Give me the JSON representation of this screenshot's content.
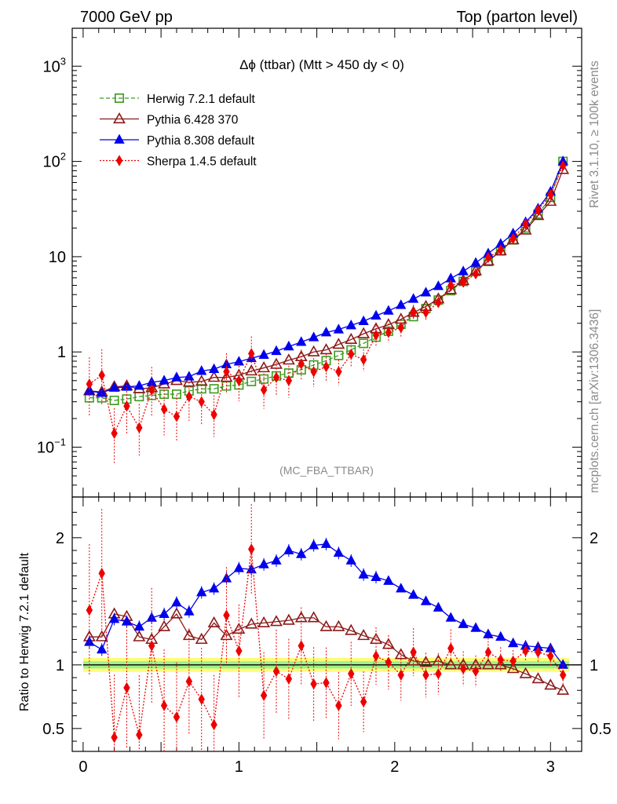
{
  "header": {
    "left": "7000 GeV pp",
    "right": "Top (parton level)"
  },
  "side_labels": {
    "rivet": "Rivet 3.1.10, ≥ 100k events",
    "mcplots": "mcplots.cern.ch [arXiv:1306.3436]"
  },
  "chart_data": {
    "type": "line",
    "title": "Δϕ (ttbar) (Mtt > 450 dy < 0)",
    "watermark": "(MC_FBA_TTBAR)",
    "log_y": true,
    "xlim": [
      -0.07,
      3.2
    ],
    "ylim": [
      0.03,
      2500
    ],
    "x_ticks": [
      "0",
      "1",
      "2",
      "3"
    ],
    "y_ticks": [
      {
        "v": 0.1,
        "base": "10",
        "exp": "−1"
      },
      {
        "v": 1,
        "base": "1",
        "exp": ""
      },
      {
        "v": 10,
        "base": "10",
        "exp": ""
      },
      {
        "v": 100,
        "base": "10",
        "exp": "2"
      },
      {
        "v": 1000,
        "base": "10",
        "exp": "3"
      }
    ],
    "x": [
      0.04,
      0.12,
      0.2,
      0.28,
      0.36,
      0.44,
      0.52,
      0.6,
      0.68,
      0.76,
      0.84,
      0.92,
      1.0,
      1.08,
      1.16,
      1.24,
      1.32,
      1.4,
      1.48,
      1.56,
      1.64,
      1.72,
      1.8,
      1.88,
      1.96,
      2.04,
      2.12,
      2.2,
      2.28,
      2.36,
      2.44,
      2.52,
      2.6,
      2.68,
      2.76,
      2.84,
      2.92,
      3.0,
      3.08
    ],
    "series": [
      {
        "name": "Herwig 7.2.1 default",
        "color": "#3e9a1e",
        "marker": "open-square",
        "line": "dashed",
        "values": [
          0.33,
          0.33,
          0.31,
          0.32,
          0.34,
          0.35,
          0.36,
          0.36,
          0.39,
          0.41,
          0.41,
          0.44,
          0.45,
          0.49,
          0.52,
          0.56,
          0.6,
          0.65,
          0.73,
          0.81,
          0.92,
          1.05,
          1.23,
          1.43,
          1.65,
          1.95,
          2.35,
          2.85,
          3.5,
          4.4,
          5.5,
          7.0,
          8.9,
          11.5,
          15.0,
          20.0,
          28.0,
          42.0,
          100.0
        ]
      },
      {
        "name": "Pythia 6.428 370",
        "color": "#8b1a1a",
        "marker": "open-triangle",
        "line": "solid",
        "values": [
          0.39,
          0.38,
          0.43,
          0.44,
          0.41,
          0.42,
          0.46,
          0.5,
          0.48,
          0.49,
          0.54,
          0.54,
          0.57,
          0.63,
          0.68,
          0.74,
          0.82,
          0.89,
          1.0,
          1.05,
          1.2,
          1.35,
          1.55,
          1.75,
          1.93,
          2.2,
          2.6,
          3.0,
          3.6,
          4.5,
          5.6,
          7.1,
          9.0,
          11.5,
          15.0,
          19.0,
          27.0,
          38.0,
          82.0
        ]
      },
      {
        "name": "Pythia 8.308 default",
        "color": "#0000ee",
        "marker": "filled-triangle",
        "line": "solid",
        "values": [
          0.39,
          0.37,
          0.42,
          0.43,
          0.44,
          0.48,
          0.5,
          0.54,
          0.55,
          0.63,
          0.66,
          0.74,
          0.79,
          0.86,
          0.93,
          1.02,
          1.14,
          1.27,
          1.42,
          1.6,
          1.72,
          1.9,
          2.1,
          2.4,
          2.7,
          3.1,
          3.6,
          4.2,
          4.9,
          5.9,
          7.0,
          8.6,
          10.8,
          13.6,
          17.5,
          23.0,
          32.0,
          48.0,
          100.0
        ]
      },
      {
        "name": "Sherpa 1.4.5 default",
        "color": "#ee0000",
        "marker": "filled-diamond",
        "line": "dotted",
        "values": [
          0.46,
          0.57,
          0.14,
          0.27,
          0.16,
          0.4,
          0.25,
          0.21,
          0.34,
          0.3,
          0.22,
          0.62,
          0.5,
          0.96,
          0.4,
          0.54,
          0.5,
          0.75,
          0.62,
          0.7,
          0.62,
          0.95,
          0.83,
          1.5,
          1.6,
          1.8,
          2.6,
          2.6,
          3.3,
          5.0,
          5.4,
          6.6,
          9.8,
          11.8,
          15.5,
          22.0,
          31.0,
          45.0,
          90.0
        ]
      }
    ],
    "ratio": {
      "ylabel": "Ratio to Herwig 7.2.1 default",
      "ylim": [
        0.32,
        2.32
      ],
      "y_ticks": [
        0.5,
        1,
        2
      ],
      "band_outer": 0.055,
      "band_inner": 0.028,
      "series": [
        {
          "name": "Pythia 6.428 370",
          "values": [
            1.22,
            1.22,
            1.4,
            1.38,
            1.22,
            1.2,
            1.3,
            1.4,
            1.23,
            1.2,
            1.33,
            1.23,
            1.28,
            1.32,
            1.33,
            1.34,
            1.35,
            1.37,
            1.37,
            1.3,
            1.3,
            1.27,
            1.23,
            1.2,
            1.16,
            1.08,
            1.03,
            1.02,
            1.03,
            1.0,
            1.0,
            1.0,
            1.0,
            1.0,
            0.97,
            0.93,
            0.89,
            0.84,
            0.8
          ]
        },
        {
          "name": "Pythia 8.308 default",
          "values": [
            1.18,
            1.12,
            1.36,
            1.34,
            1.3,
            1.37,
            1.4,
            1.49,
            1.42,
            1.57,
            1.6,
            1.68,
            1.76,
            1.75,
            1.79,
            1.82,
            1.9,
            1.87,
            1.94,
            1.95,
            1.88,
            1.82,
            1.71,
            1.69,
            1.66,
            1.6,
            1.55,
            1.5,
            1.45,
            1.37,
            1.32,
            1.29,
            1.24,
            1.22,
            1.17,
            1.15,
            1.14,
            1.13,
            1.0
          ]
        },
        {
          "name": "Sherpa 1.4.5 default",
          "values": [
            1.43,
            1.72,
            0.43,
            0.82,
            0.45,
            1.15,
            0.68,
            0.59,
            0.87,
            0.73,
            0.53,
            1.39,
            1.11,
            1.91,
            0.76,
            0.95,
            0.89,
            1.15,
            0.85,
            0.86,
            0.68,
            0.93,
            0.71,
            1.07,
            1.02,
            0.92,
            1.1,
            0.92,
            0.93,
            1.13,
            0.97,
            0.95,
            1.1,
            1.04,
            1.03,
            1.11,
            1.1,
            1.07,
            0.92
          ]
        }
      ]
    }
  }
}
